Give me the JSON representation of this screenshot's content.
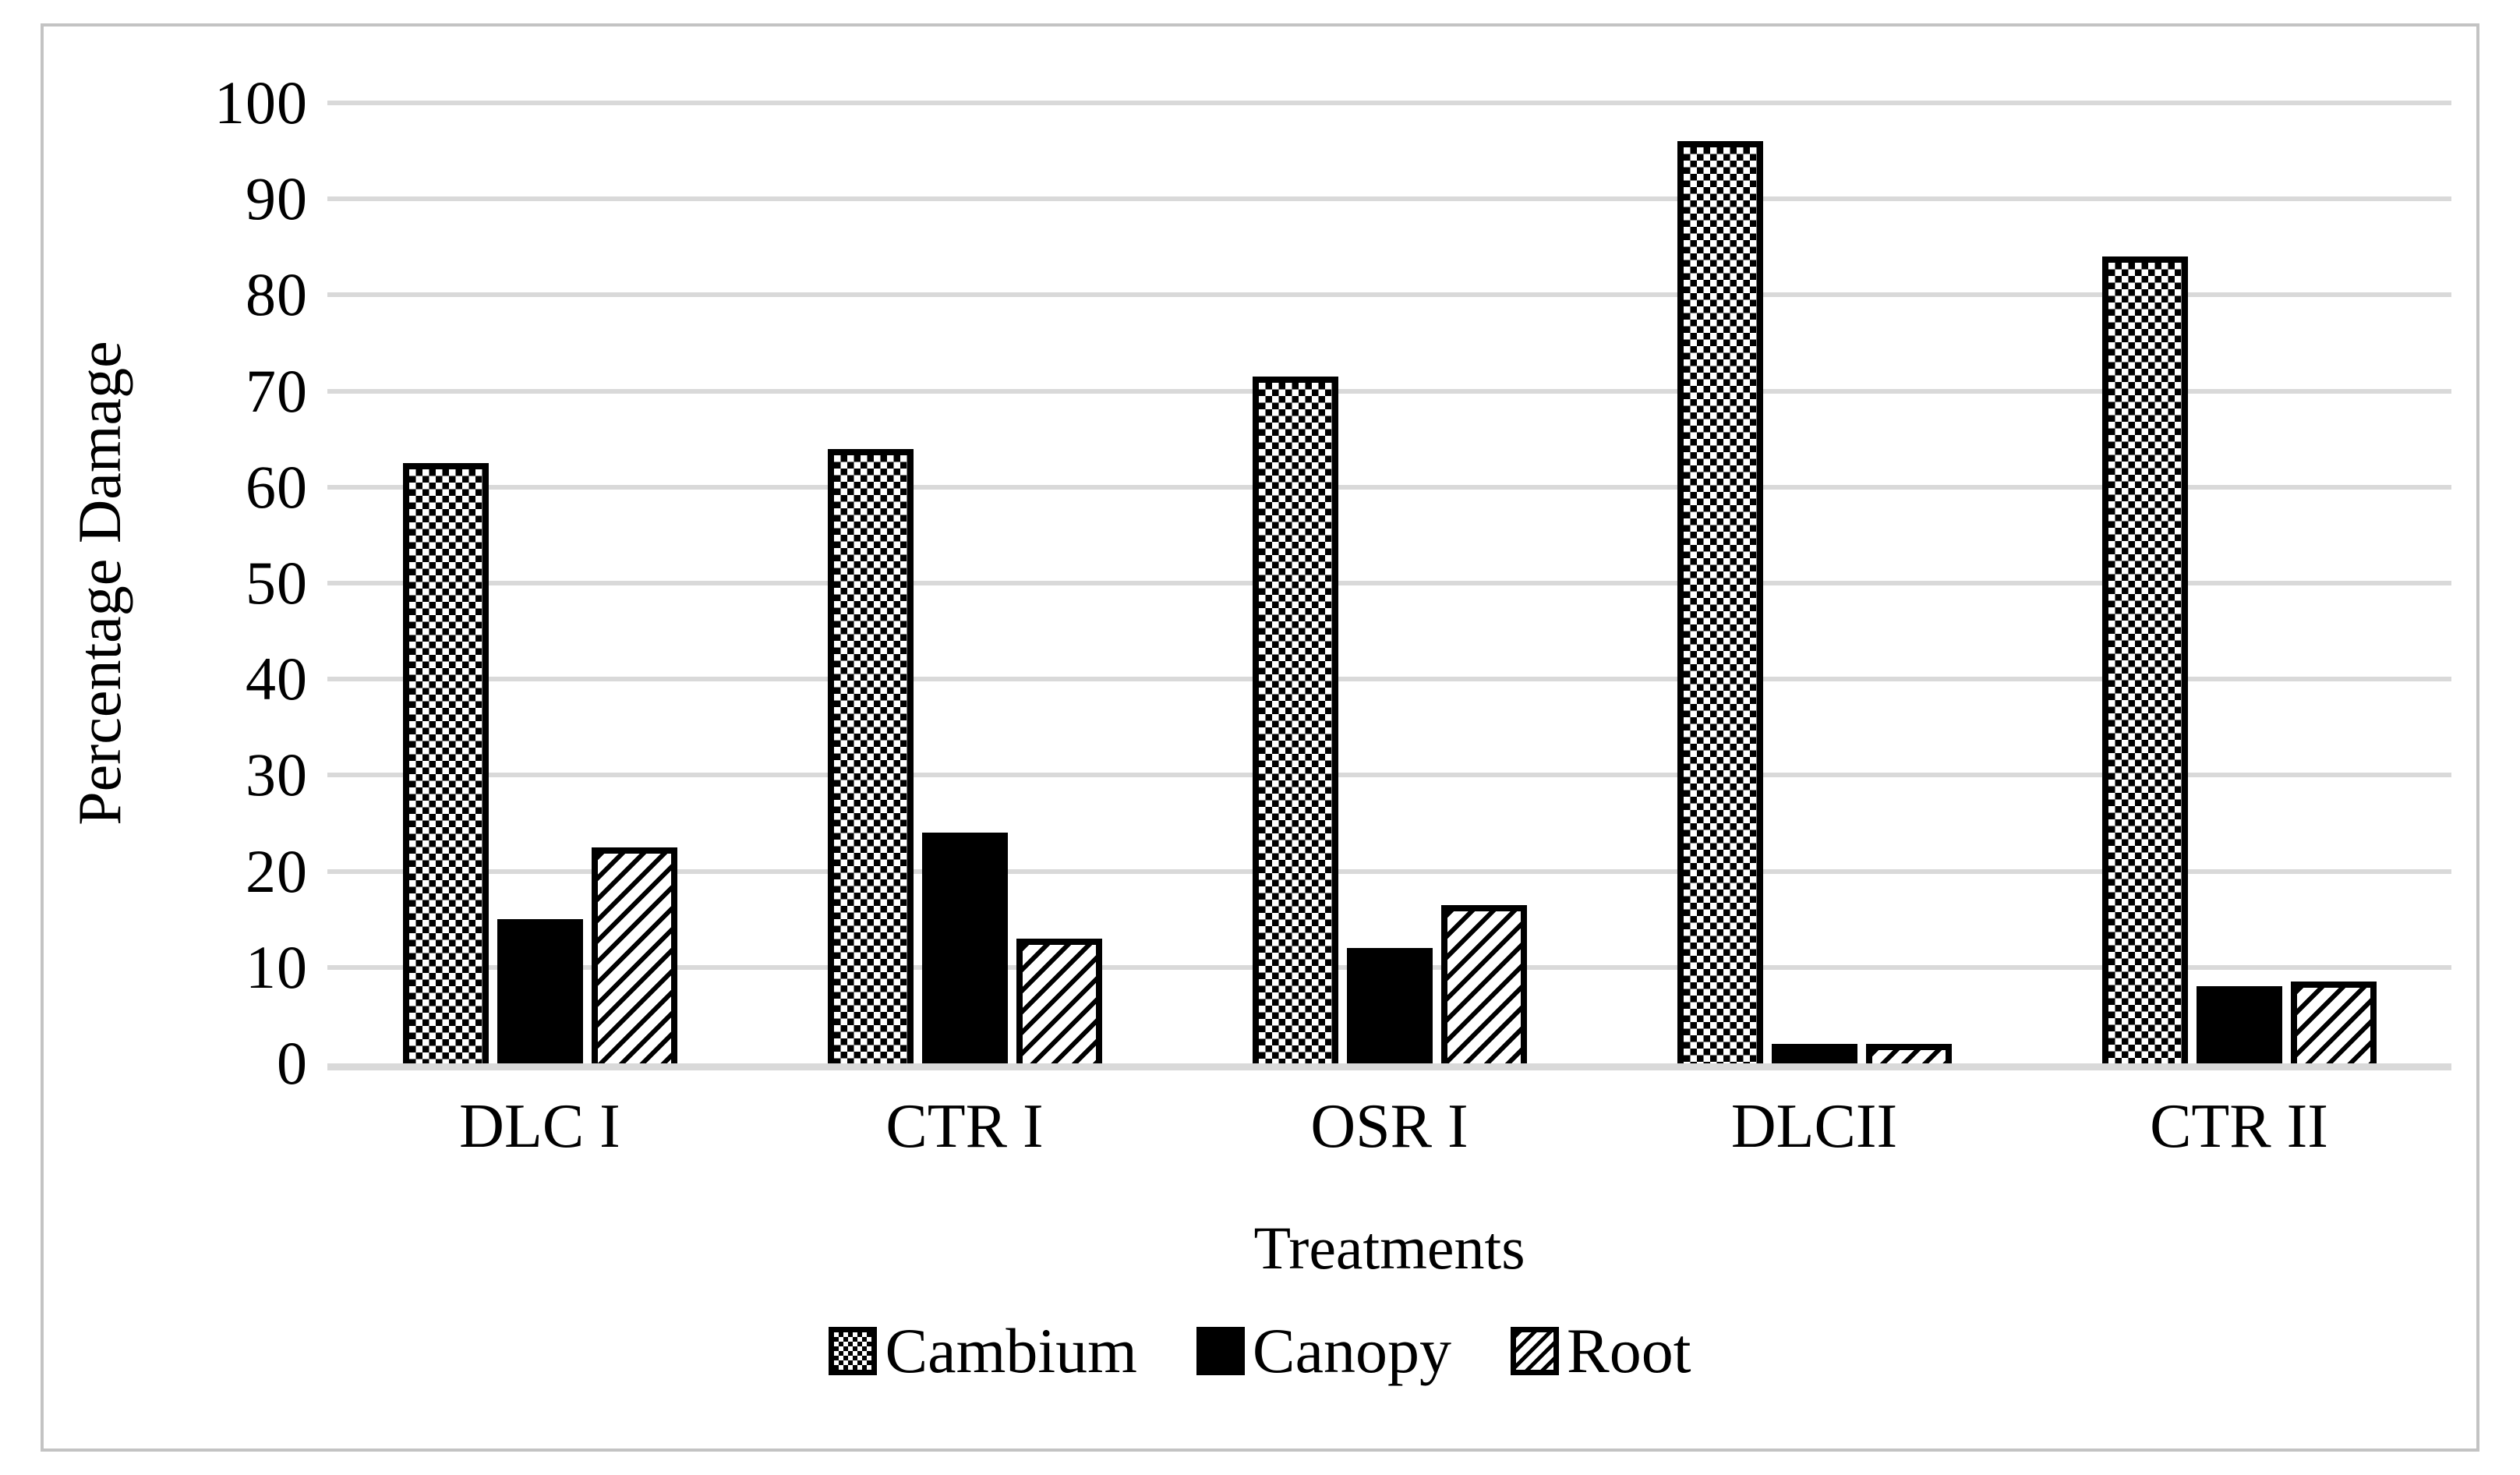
{
  "chart_data": {
    "type": "bar",
    "title": "",
    "categories": [
      "DLC I",
      "CTR I",
      "OSR I",
      "DLCII",
      "CTR II"
    ],
    "series": [
      {
        "name": "Cambium",
        "pattern": "dotted",
        "values": [
          62.5,
          64,
          71.5,
          96,
          84
        ]
      },
      {
        "name": "Canopy",
        "pattern": "solid",
        "values": [
          15,
          24,
          12,
          2,
          8
        ]
      },
      {
        "name": "Root",
        "pattern": "diagonal-hatch",
        "values": [
          22.5,
          13,
          16.5,
          2,
          8.5
        ]
      }
    ],
    "xlabel": "Treatments",
    "ylabel": "Percentage Damage",
    "ylim": [
      0,
      100
    ],
    "yticks": [
      0,
      10,
      20,
      30,
      40,
      50,
      60,
      70,
      80,
      90,
      100
    ],
    "grid": true,
    "legend_position": "bottom",
    "colors": {
      "bar_fill": "#000000",
      "bar_background": "#ffffff",
      "gridline": "#d9d9d9",
      "frame_border": "#c3c3c3",
      "text": "#000000",
      "background": "#ffffff"
    }
  }
}
